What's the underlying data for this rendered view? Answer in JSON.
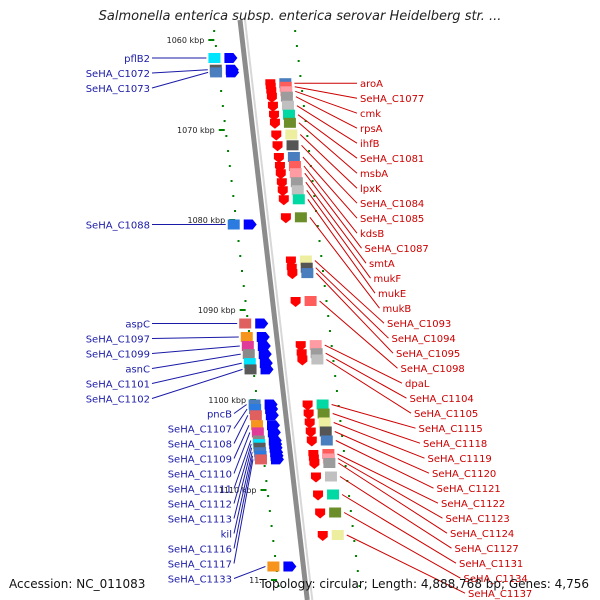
{
  "title": "Salmonella enterica subsp. enterica serovar Heidelberg str. ...",
  "accession": "Accession: NC_011083",
  "topology": "Topology: circular; Length: 4,888,768 bp; Genes: 4,756",
  "scale": [
    {
      "label": "1060 kbp",
      "kbp": 1060
    },
    {
      "label": "1070 kbp",
      "kbp": 1070
    },
    {
      "label": "1080 kbp",
      "kbp": 1080
    },
    {
      "label": "1090 kbp",
      "kbp": 1090
    },
    {
      "label": "1100 kbp",
      "kbp": 1100
    },
    {
      "label": "1110 kbp",
      "kbp": 1110
    },
    {
      "label": "11...",
      "kbp": 1120
    }
  ],
  "colors": {
    "forward_label": "#1a1aa6",
    "reverse_label": "#cc0000",
    "forward_arrow": "#0000ff",
    "reverse_arrow": "#ff0000",
    "backbone": "#8c8c8c",
    "tick": "#008000"
  },
  "left_genes": [
    {
      "name": "pflB2",
      "kbp": 1062.0
    },
    {
      "name": "SeHA_C1072",
      "kbp": 1063.3
    },
    {
      "name": "SeHA_C1073",
      "kbp": 1063.6
    },
    {
      "name": "SeHA_C1088",
      "kbp": 1080.5
    },
    {
      "name": "aspC",
      "kbp": 1091.5
    },
    {
      "name": "SeHA_C1097",
      "kbp": 1093.0
    },
    {
      "name": "SeHA_C1099",
      "kbp": 1094.0
    },
    {
      "name": "asnC",
      "kbp": 1094.9
    },
    {
      "name": "SeHA_C1101",
      "kbp": 1095.9
    },
    {
      "name": "SeHA_C1102",
      "kbp": 1096.6
    },
    {
      "name": "pncB",
      "kbp": 1100.5
    },
    {
      "name": "SeHA_C1107",
      "kbp": 1101.0
    },
    {
      "name": "SeHA_C1108",
      "kbp": 1101.7
    },
    {
      "name": "SeHA_C1109",
      "kbp": 1102.8
    },
    {
      "name": "SeHA_C1110",
      "kbp": 1103.6
    },
    {
      "name": "SeHA_C1111",
      "kbp": 1104.5
    },
    {
      "name": "SeHA_C1112",
      "kbp": 1104.9
    },
    {
      "name": "SeHA_C1113",
      "kbp": 1105.3
    },
    {
      "name": "kil",
      "kbp": 1105.8
    },
    {
      "name": "SeHA_C1116",
      "kbp": 1106.2
    },
    {
      "name": "SeHA_C1117",
      "kbp": 1106.6
    },
    {
      "name": "SeHA_C1133",
      "kbp": 1118.5
    }
  ],
  "right_genes": [
    {
      "name": "aroA",
      "kbp": 1064.8
    },
    {
      "name": "SeHA_C1077",
      "kbp": 1065.2
    },
    {
      "name": "cmk",
      "kbp": 1065.7
    },
    {
      "name": "rpsA",
      "kbp": 1066.3
    },
    {
      "name": "ihfB",
      "kbp": 1067.3
    },
    {
      "name": "SeHA_C1081",
      "kbp": 1068.3
    },
    {
      "name": "msbA",
      "kbp": 1069.2
    },
    {
      "name": "lpxK",
      "kbp": 1070.5
    },
    {
      "name": "SeHA_C1084",
      "kbp": 1071.7
    },
    {
      "name": "SeHA_C1085",
      "kbp": 1073.0
    },
    {
      "name": "kdsB",
      "kbp": 1074.0
    },
    {
      "name": "SeHA_C1087",
      "kbp": 1074.8
    },
    {
      "name": "smtA",
      "kbp": 1075.8
    },
    {
      "name": "mukF",
      "kbp": 1076.7
    },
    {
      "name": "mukE",
      "kbp": 1077.7
    },
    {
      "name": "mukB",
      "kbp": 1079.7
    },
    {
      "name": "SeHA_C1093",
      "kbp": 1084.5
    },
    {
      "name": "SeHA_C1094",
      "kbp": 1085.3
    },
    {
      "name": "SeHA_C1095",
      "kbp": 1085.9
    },
    {
      "name": "SeHA_C1098",
      "kbp": 1089.0
    },
    {
      "name": "dpaL",
      "kbp": 1093.9
    },
    {
      "name": "SeHA_C1104",
      "kbp": 1094.8
    },
    {
      "name": "SeHA_C1105",
      "kbp": 1095.5
    },
    {
      "name": "SeHA_C1115",
      "kbp": 1100.5
    },
    {
      "name": "SeHA_C1118",
      "kbp": 1101.5
    },
    {
      "name": "SeHA_C1119",
      "kbp": 1102.5
    },
    {
      "name": "SeHA_C1120",
      "kbp": 1103.5
    },
    {
      "name": "SeHA_C1121",
      "kbp": 1104.5
    },
    {
      "name": "SeHA_C1122",
      "kbp": 1106.0
    },
    {
      "name": "SeHA_C1123",
      "kbp": 1106.5
    },
    {
      "name": "SeHA_C1124",
      "kbp": 1107.0
    },
    {
      "name": "SeHA_C1127",
      "kbp": 1108.5
    },
    {
      "name": "SeHA_C1131",
      "kbp": 1110.5
    },
    {
      "name": "SeHA_C1134",
      "kbp": 1112.5
    },
    {
      "name": "SeHA_C1137",
      "kbp": 1115.0
    }
  ]
}
